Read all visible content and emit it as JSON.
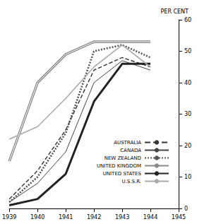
{
  "chart_data": {
    "type": "line",
    "y_label": "PER CENT",
    "x": [
      1939,
      1940,
      1941,
      1942,
      1943,
      1944
    ],
    "xlim": [
      1939,
      1945
    ],
    "xticks": [
      1939,
      1940,
      1941,
      1942,
      1943,
      1944,
      1945
    ],
    "ylim": [
      0,
      60
    ],
    "yticks": [
      0,
      10,
      20,
      30,
      40,
      50,
      60
    ],
    "grid": false,
    "legend": "lower right",
    "series": [
      {
        "name": "AUSTRALIA",
        "color": "#333333",
        "line_style": "dashed",
        "values": [
          3,
          12,
          25,
          44,
          48,
          45
        ]
      },
      {
        "name": "CANADA",
        "color": "#444444",
        "line_style": "solid",
        "values": [
          2,
          8,
          18,
          40,
          47,
          44
        ]
      },
      {
        "name": "NEW ZEALAND",
        "color": "#555555",
        "line_style": "dotted",
        "values": [
          2,
          10,
          24,
          50,
          52,
          48
        ]
      },
      {
        "name": "UNITED KINGDOM",
        "color": "#8a8a8a",
        "line_style": "double",
        "values": [
          15,
          40,
          49,
          53,
          53,
          53
        ]
      },
      {
        "name": "UNITED STATES",
        "color": "#222222",
        "line_style": "solid",
        "values": [
          1,
          3,
          11,
          34,
          46,
          46
        ]
      },
      {
        "name": "U.S.S.R.",
        "color": "#aaaaaa",
        "line_style": "solid",
        "values": [
          22,
          26,
          35,
          45,
          52,
          45
        ]
      }
    ]
  }
}
